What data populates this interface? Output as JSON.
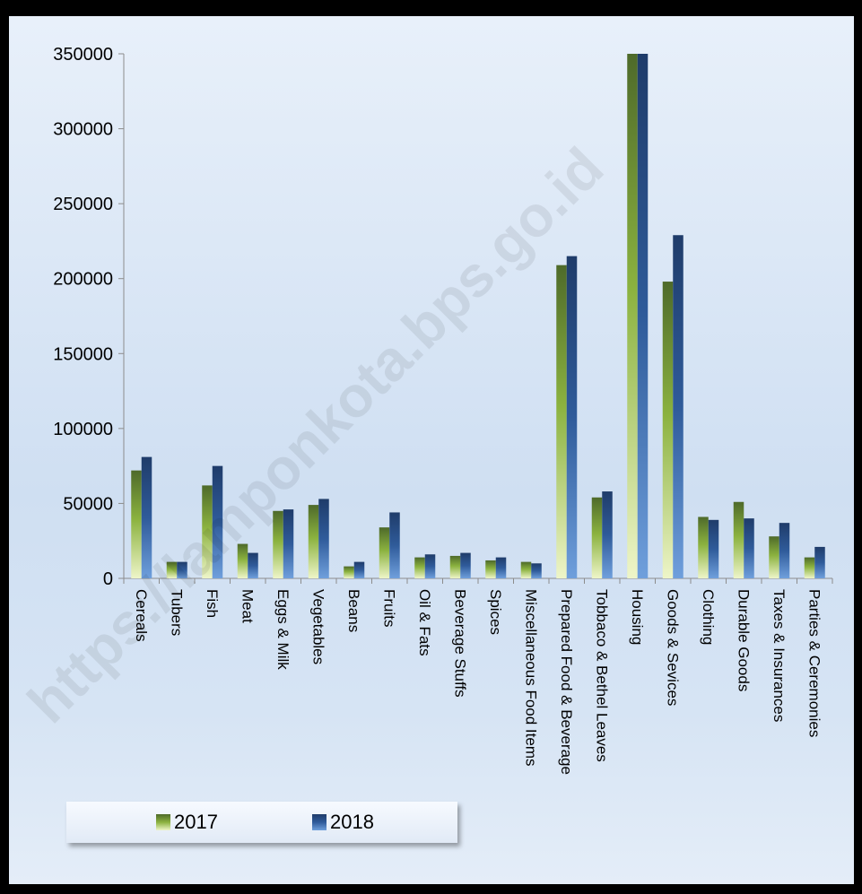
{
  "chart_data": {
    "type": "bar",
    "categories": [
      "Cereals",
      "Tubers",
      "Fish",
      "Meat",
      "Eggs & Milk",
      "Vegetables",
      "Beans",
      "Fruits",
      "Oil & Fats",
      "Beverage Stuffs",
      "Spices",
      "Miscellaneous Food Items",
      "Prepared Food & Beverage",
      "Tobbaco & Bethel Leaves",
      "Housing",
      "Goods & Sevices",
      "Clothing",
      "Durable Goods",
      "Taxes & Insurances",
      "Parties & Ceremonies"
    ],
    "series": [
      {
        "name": "2017",
        "values": [
          72000,
          11000,
          62000,
          23000,
          45000,
          49000,
          8000,
          34000,
          14000,
          15000,
          12000,
          11000,
          209000,
          54000,
          350000,
          198000,
          41000,
          51000,
          28000,
          14000
        ]
      },
      {
        "name": "2018",
        "values": [
          81000,
          11000,
          75000,
          17000,
          46000,
          53000,
          11000,
          44000,
          16000,
          17000,
          14000,
          10000,
          215000,
          58000,
          350000,
          229000,
          39000,
          40000,
          37000,
          21000
        ]
      }
    ],
    "ylim": [
      0,
      350000
    ],
    "yticks": [
      "0",
      "50000",
      "100000",
      "150000",
      "200000",
      "250000",
      "300000",
      "350000"
    ],
    "grid": false,
    "legend_position": "bottom-left"
  },
  "legend": {
    "label_2017": "2017",
    "label_2018": "2018"
  },
  "watermark": "https://lamponkota.bps.go.id",
  "colors": {
    "series_2017_top": "#4e6a2a",
    "series_2017_bottom": "#eef5c8",
    "series_2018_top": "#1f3c6a",
    "series_2018_bottom": "#6f9fdc"
  }
}
